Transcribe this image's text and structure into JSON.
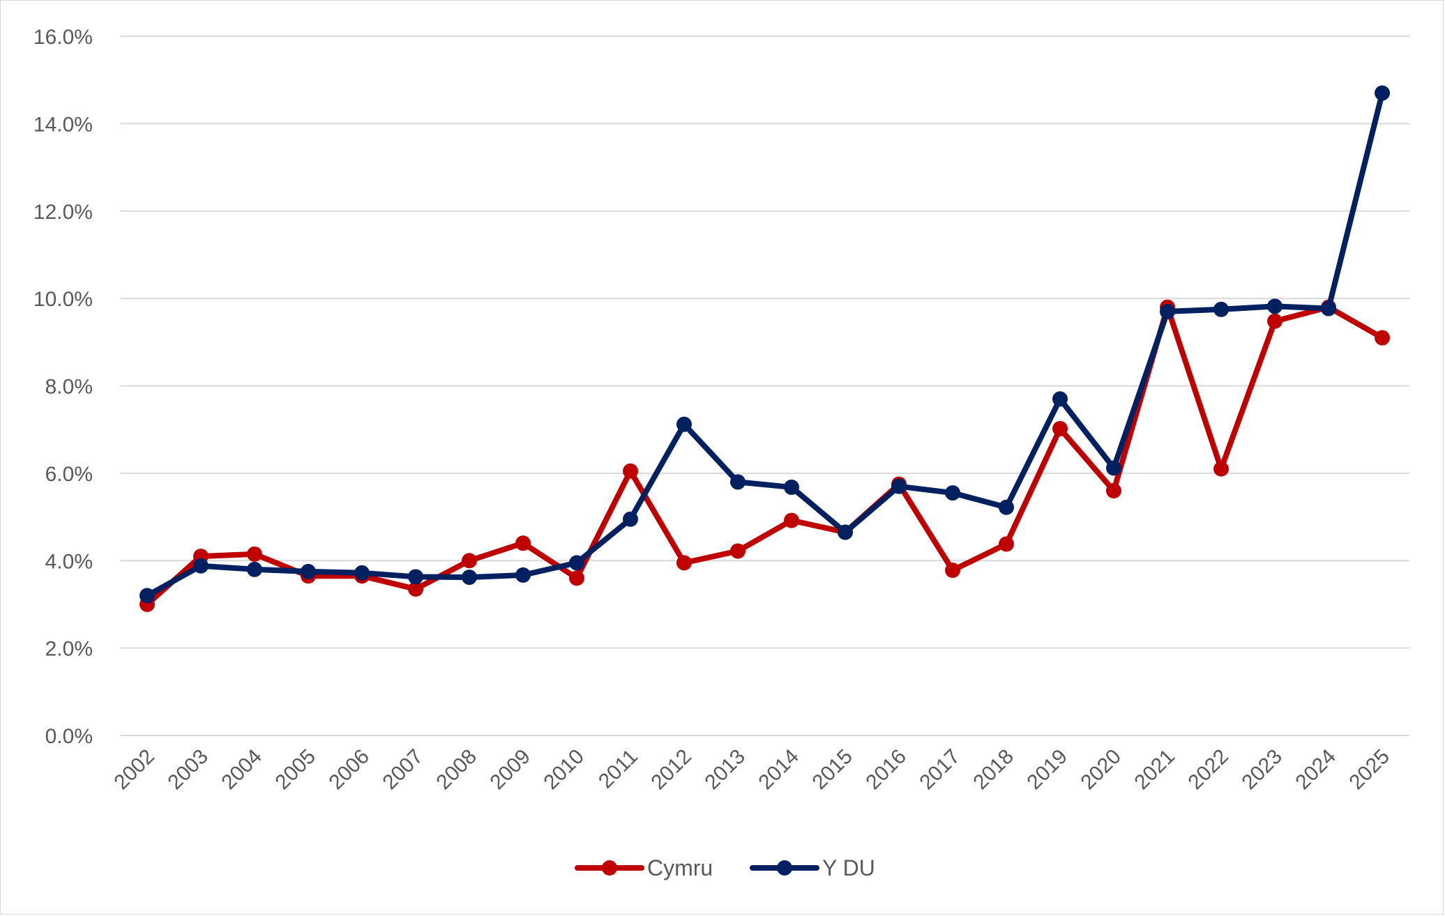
{
  "colors": {
    "cymru": "#c00000",
    "ydu": "#002060",
    "grid": "#d9d9d9",
    "text": "#595959"
  },
  "chart_data": {
    "type": "line",
    "title": "",
    "xlabel": "",
    "ylabel": "",
    "categories": [
      "2002",
      "2003",
      "2004",
      "2005",
      "2006",
      "2007",
      "2008",
      "2009",
      "2010",
      "2011",
      "2012",
      "2013",
      "2014",
      "2015",
      "2016",
      "2017",
      "2018",
      "2019",
      "2020",
      "2021",
      "2022",
      "2023",
      "2024",
      "2025"
    ],
    "ylim": [
      0,
      16
    ],
    "yticks": [
      0,
      2,
      4,
      6,
      8,
      10,
      12,
      14,
      16
    ],
    "ytick_labels": [
      "0.0%",
      "2.0%",
      "4.0%",
      "6.0%",
      "8.0%",
      "10.0%",
      "12.0%",
      "14.0%",
      "16.0%"
    ],
    "grid": true,
    "legend_position": "bottom",
    "series": [
      {
        "name": "Cymru",
        "color": "#c00000",
        "values": [
          3.0,
          4.1,
          4.15,
          3.65,
          3.65,
          3.35,
          4.0,
          4.4,
          3.6,
          6.05,
          3.95,
          4.22,
          4.92,
          4.65,
          5.75,
          3.78,
          4.38,
          7.02,
          5.6,
          9.8,
          6.1,
          9.48,
          9.8,
          9.1
        ]
      },
      {
        "name": "Y DU",
        "color": "#002060",
        "values": [
          3.2,
          3.88,
          3.8,
          3.75,
          3.72,
          3.63,
          3.62,
          3.67,
          3.95,
          4.95,
          7.12,
          5.8,
          5.68,
          4.65,
          5.7,
          5.55,
          5.22,
          7.7,
          6.12,
          9.7,
          9.75,
          9.82,
          9.77,
          14.7
        ]
      }
    ]
  }
}
